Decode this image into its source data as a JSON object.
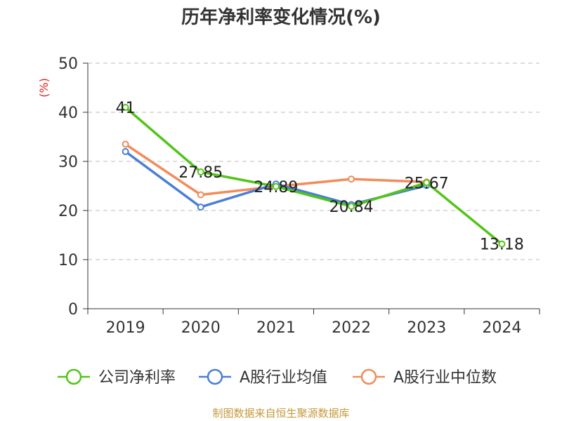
{
  "title": "历年净利率变化情况(%)",
  "footer": "制图数据来自恒生聚源数据库",
  "chart_data": {
    "type": "line",
    "title": "历年净利率变化情况(%)",
    "ylabel": "(%)",
    "ylim": [
      0,
      50
    ],
    "yticks": [
      0,
      10,
      20,
      30,
      40,
      50
    ],
    "categories": [
      "2019",
      "2020",
      "2021",
      "2022",
      "2023",
      "2024"
    ],
    "grid": true,
    "legend_position": "bottom",
    "series": [
      {
        "name": "公司净利率",
        "color": "#52c41a",
        "values": [
          41,
          27.85,
          24.89,
          20.84,
          25.67,
          13.18
        ],
        "labels": [
          "41",
          "27.85",
          "24.89",
          "20.84",
          "25.67",
          "13.18"
        ]
      },
      {
        "name": "A股行业均值",
        "color": "#4a7fd4",
        "values": [
          32.0,
          20.7,
          25.4,
          21.2,
          25.1,
          null
        ]
      },
      {
        "name": "A股行业中位数",
        "color": "#f28c5a",
        "values": [
          33.5,
          23.2,
          24.9,
          26.4,
          25.8,
          null
        ]
      }
    ],
    "ylabel_color": "#e02020"
  }
}
